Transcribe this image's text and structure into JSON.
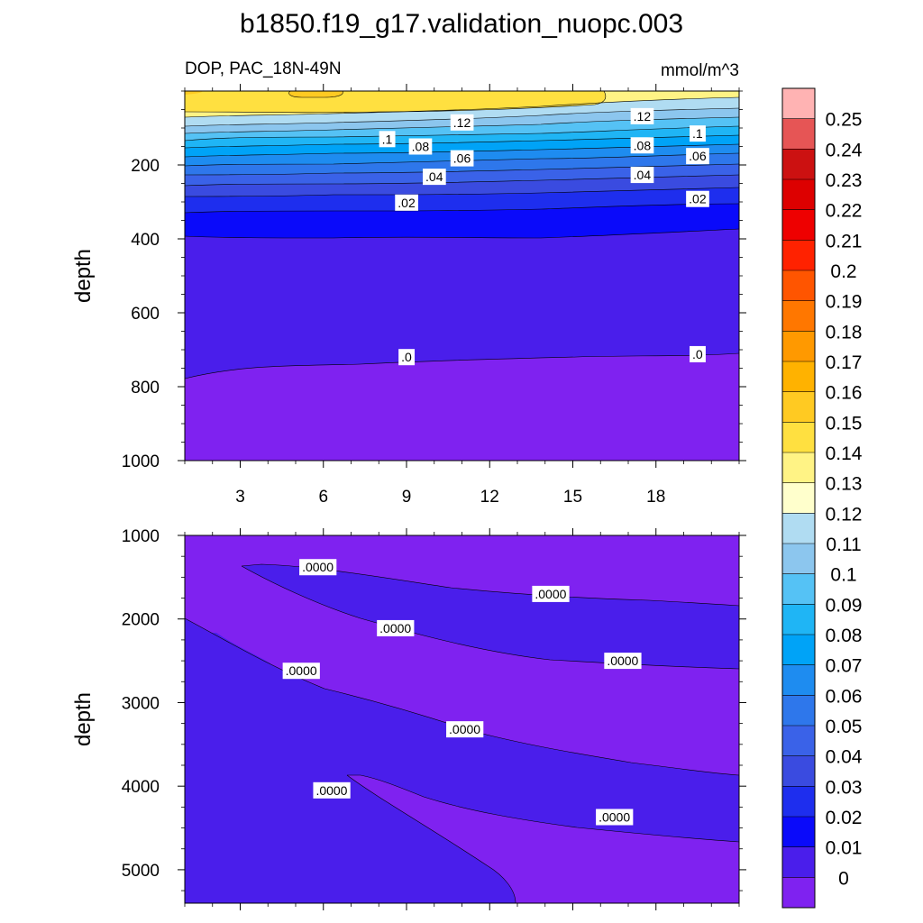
{
  "chart_data": {
    "type": "contour",
    "title": "b1850.f19_g17.validation_nuopc.003",
    "left_subtitle": "DOP, PAC_18N-49N",
    "right_subtitle": "mmol/m^3",
    "panels": [
      {
        "name": "upper",
        "ylabel": "depth",
        "xlim": [
          1,
          21
        ],
        "ylim": [
          1000,
          0
        ],
        "x_ticks": [
          "3",
          "6",
          "9",
          "12",
          "15",
          "18"
        ],
        "y_ticks": [
          "200",
          "400",
          "600",
          "800",
          "1000"
        ],
        "contour_labels": [
          {
            "text": ".12",
            "x": 11,
            "y": 85
          },
          {
            "text": ".12",
            "x": 17.5,
            "y": 68
          },
          {
            "text": ".1",
            "x": 8.3,
            "y": 130
          },
          {
            "text": ".1",
            "x": 19.5,
            "y": 115
          },
          {
            "text": ".08",
            "x": 9.5,
            "y": 150
          },
          {
            "text": ".08",
            "x": 17.5,
            "y": 147
          },
          {
            "text": ".06",
            "x": 11,
            "y": 182
          },
          {
            "text": ".06",
            "x": 19.5,
            "y": 176
          },
          {
            "text": ".04",
            "x": 10,
            "y": 232
          },
          {
            "text": ".04",
            "x": 17.5,
            "y": 227
          },
          {
            "text": ".02",
            "x": 9,
            "y": 302
          },
          {
            "text": ".02",
            "x": 19.5,
            "y": 292
          },
          {
            "text": ".0",
            "x": 9,
            "y": 720
          },
          {
            "text": ".0",
            "x": 19.5,
            "y": 712
          }
        ]
      },
      {
        "name": "lower",
        "ylabel": "depth",
        "xlim": [
          1,
          21
        ],
        "ylim": [
          5400,
          1000
        ],
        "y_ticks": [
          "1000",
          "2000",
          "3000",
          "4000",
          "5000"
        ],
        "contour_labels": [
          {
            "text": ".0000",
            "x": 5.8,
            "y": 1380
          },
          {
            "text": ".0000",
            "x": 14.2,
            "y": 1700
          },
          {
            "text": ".0000",
            "x": 8.6,
            "y": 2110
          },
          {
            "text": ".0000",
            "x": 16.8,
            "y": 2500
          },
          {
            "text": ".0000",
            "x": 5.2,
            "y": 2620
          },
          {
            "text": ".0000",
            "x": 11.1,
            "y": 3320
          },
          {
            "text": ".0000",
            "x": 6.3,
            "y": 4050
          },
          {
            "text": ".0000",
            "x": 16.5,
            "y": 4370
          }
        ]
      }
    ],
    "colorbar": {
      "labels": [
        "0.25",
        "0.24",
        "0.23",
        "0.22",
        "0.21",
        "0.2",
        "0.19",
        "0.18",
        "0.17",
        "0.16",
        "0.15",
        "0.14",
        "0.13",
        "0.12",
        "0.11",
        "0.1",
        "0.09",
        "0.08",
        "0.07",
        "0.06",
        "0.05",
        "0.04",
        "0.03",
        "0.02",
        "0.01",
        "0"
      ],
      "colors_top_to_bottom": [
        "#FFB3B3",
        "#E65555",
        "#CC1111",
        "#DD0000",
        "#EE0000",
        "#FF2200",
        "#FF5500",
        "#FF7700",
        "#FF9900",
        "#FFB200",
        "#FFCA22",
        "#FFE040",
        "#FFF385",
        "#FFFFCC",
        "#B0DCF2",
        "#8CC6EE",
        "#55C2F5",
        "#1FB5F5",
        "#00A3F7",
        "#1E8CF0",
        "#2E77EB",
        "#3A62E8",
        "#3A4BE0",
        "#1E2EEE",
        "#0A0AFA",
        "#4A1EEB",
        "#7F22F0"
      ]
    }
  }
}
